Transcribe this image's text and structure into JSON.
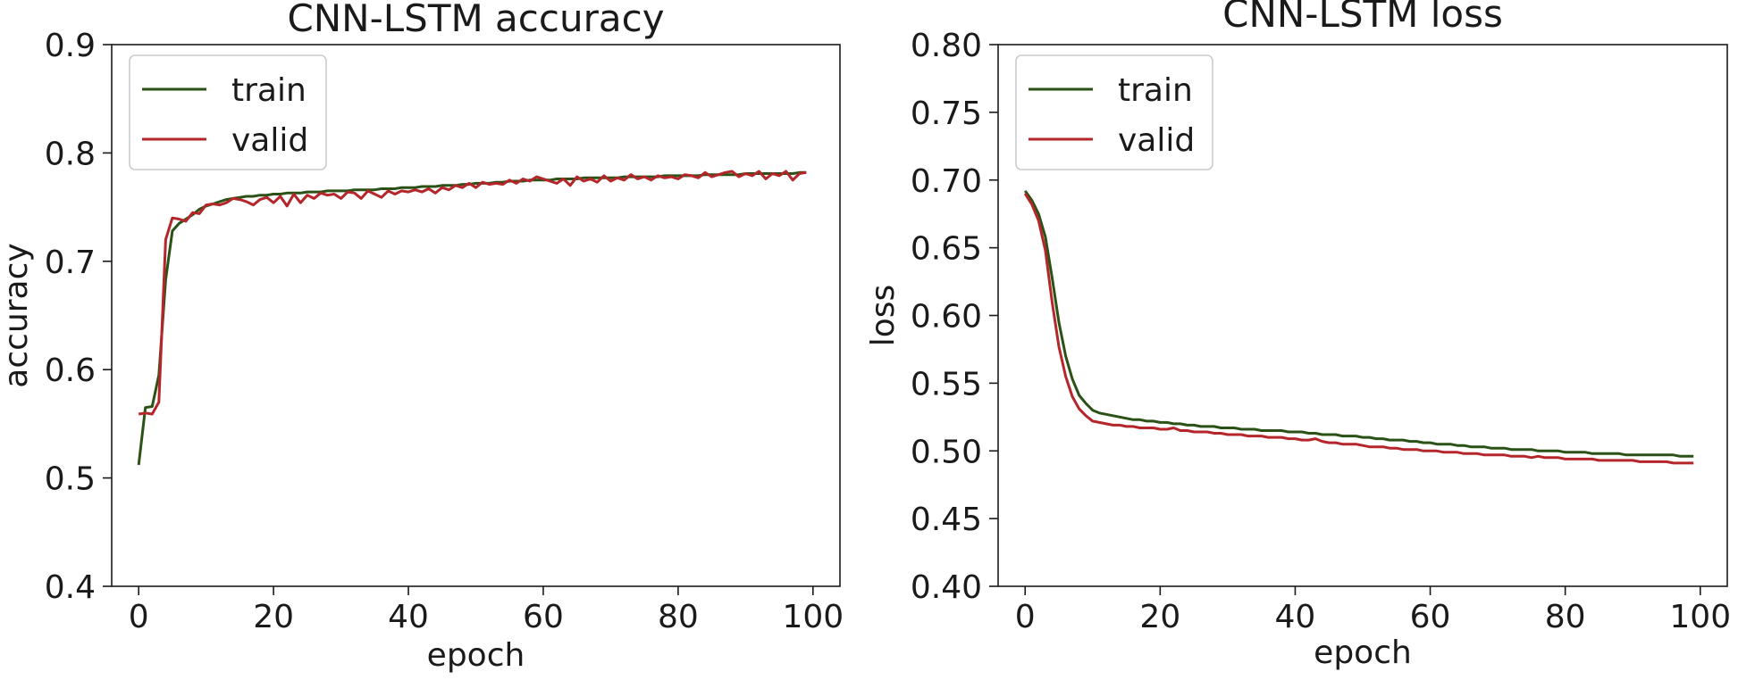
{
  "colors": {
    "train": "#2b5216",
    "valid": "#b5262b"
  },
  "chart_data": [
    {
      "type": "line",
      "title": "CNN-LSTM accuracy",
      "xlabel": "epoch",
      "ylabel": "accuracy",
      "xlim": [
        -4,
        104
      ],
      "ylim": [
        0.4,
        0.9
      ],
      "xticks": [
        "0",
        "20",
        "40",
        "60",
        "80",
        "100"
      ],
      "yticks": [
        "0.4",
        "0.5",
        "0.6",
        "0.7",
        "0.8",
        "0.9"
      ],
      "grid": false,
      "legend": "top-left",
      "x": [
        0,
        1,
        2,
        3,
        4,
        5,
        6,
        7,
        8,
        9,
        10,
        11,
        12,
        13,
        14,
        15,
        16,
        17,
        18,
        19,
        20,
        21,
        22,
        23,
        24,
        25,
        26,
        27,
        28,
        29,
        30,
        31,
        32,
        33,
        34,
        35,
        36,
        37,
        38,
        39,
        40,
        41,
        42,
        43,
        44,
        45,
        46,
        47,
        48,
        49,
        50,
        51,
        52,
        53,
        54,
        55,
        56,
        57,
        58,
        59,
        60,
        61,
        62,
        63,
        64,
        65,
        66,
        67,
        68,
        69,
        70,
        71,
        72,
        73,
        74,
        75,
        76,
        77,
        78,
        79,
        80,
        81,
        82,
        83,
        84,
        85,
        86,
        87,
        88,
        89,
        90,
        91,
        92,
        93,
        94,
        95,
        96,
        97,
        98,
        99
      ],
      "series": [
        {
          "name": "train",
          "color": "#2b5216",
          "values": [
            0.512,
            0.565,
            0.566,
            0.595,
            0.683,
            0.728,
            0.735,
            0.739,
            0.743,
            0.748,
            0.751,
            0.753,
            0.755,
            0.757,
            0.758,
            0.759,
            0.76,
            0.76,
            0.761,
            0.761,
            0.762,
            0.762,
            0.763,
            0.763,
            0.763,
            0.764,
            0.764,
            0.764,
            0.765,
            0.765,
            0.765,
            0.765,
            0.766,
            0.766,
            0.766,
            0.766,
            0.767,
            0.767,
            0.767,
            0.768,
            0.768,
            0.768,
            0.769,
            0.769,
            0.769,
            0.77,
            0.77,
            0.77,
            0.771,
            0.771,
            0.772,
            0.772,
            0.772,
            0.773,
            0.773,
            0.774,
            0.774,
            0.774,
            0.775,
            0.775,
            0.775,
            0.775,
            0.776,
            0.776,
            0.776,
            0.776,
            0.777,
            0.777,
            0.777,
            0.777,
            0.777,
            0.777,
            0.778,
            0.778,
            0.778,
            0.778,
            0.778,
            0.778,
            0.779,
            0.779,
            0.779,
            0.779,
            0.779,
            0.779,
            0.78,
            0.78,
            0.78,
            0.78,
            0.78,
            0.78,
            0.781,
            0.781,
            0.781,
            0.781,
            0.781,
            0.781,
            0.781,
            0.781,
            0.782,
            0.782
          ]
        },
        {
          "name": "valid",
          "color": "#b5262b",
          "values": [
            0.559,
            0.56,
            0.559,
            0.57,
            0.72,
            0.74,
            0.739,
            0.737,
            0.745,
            0.744,
            0.752,
            0.753,
            0.752,
            0.754,
            0.758,
            0.757,
            0.755,
            0.752,
            0.757,
            0.759,
            0.754,
            0.76,
            0.751,
            0.762,
            0.754,
            0.761,
            0.758,
            0.763,
            0.761,
            0.762,
            0.758,
            0.764,
            0.763,
            0.758,
            0.765,
            0.762,
            0.759,
            0.765,
            0.762,
            0.765,
            0.764,
            0.766,
            0.764,
            0.767,
            0.763,
            0.768,
            0.766,
            0.77,
            0.768,
            0.772,
            0.768,
            0.773,
            0.771,
            0.772,
            0.771,
            0.775,
            0.772,
            0.776,
            0.774,
            0.778,
            0.776,
            0.774,
            0.772,
            0.776,
            0.77,
            0.778,
            0.774,
            0.776,
            0.773,
            0.779,
            0.774,
            0.777,
            0.775,
            0.78,
            0.776,
            0.778,
            0.775,
            0.779,
            0.777,
            0.778,
            0.776,
            0.78,
            0.779,
            0.777,
            0.782,
            0.778,
            0.78,
            0.782,
            0.783,
            0.778,
            0.781,
            0.779,
            0.783,
            0.776,
            0.781,
            0.779,
            0.783,
            0.775,
            0.781,
            0.782
          ]
        }
      ]
    },
    {
      "type": "line",
      "title": "CNN-LSTM loss",
      "xlabel": "epoch",
      "ylabel": "loss",
      "xlim": [
        -4,
        104
      ],
      "ylim": [
        0.4,
        0.8
      ],
      "xticks": [
        "0",
        "20",
        "40",
        "60",
        "80",
        "100"
      ],
      "yticks": [
        "0.40",
        "0.45",
        "0.50",
        "0.55",
        "0.60",
        "0.65",
        "0.70",
        "0.75",
        "0.80"
      ],
      "grid": false,
      "legend": "top-left",
      "x": [
        0,
        1,
        2,
        3,
        4,
        5,
        6,
        7,
        8,
        9,
        10,
        11,
        12,
        13,
        14,
        15,
        16,
        17,
        18,
        19,
        20,
        21,
        22,
        23,
        24,
        25,
        26,
        27,
        28,
        29,
        30,
        31,
        32,
        33,
        34,
        35,
        36,
        37,
        38,
        39,
        40,
        41,
        42,
        43,
        44,
        45,
        46,
        47,
        48,
        49,
        50,
        51,
        52,
        53,
        54,
        55,
        56,
        57,
        58,
        59,
        60,
        61,
        62,
        63,
        64,
        65,
        66,
        67,
        68,
        69,
        70,
        71,
        72,
        73,
        74,
        75,
        76,
        77,
        78,
        79,
        80,
        81,
        82,
        83,
        84,
        85,
        86,
        87,
        88,
        89,
        90,
        91,
        92,
        93,
        94,
        95,
        96,
        97,
        98,
        99
      ],
      "series": [
        {
          "name": "train",
          "color": "#2b5216",
          "values": [
            0.692,
            0.685,
            0.675,
            0.658,
            0.628,
            0.595,
            0.57,
            0.553,
            0.541,
            0.535,
            0.53,
            0.528,
            0.527,
            0.526,
            0.525,
            0.524,
            0.523,
            0.523,
            0.522,
            0.522,
            0.521,
            0.521,
            0.52,
            0.52,
            0.519,
            0.519,
            0.518,
            0.518,
            0.518,
            0.517,
            0.517,
            0.517,
            0.516,
            0.516,
            0.516,
            0.515,
            0.515,
            0.515,
            0.515,
            0.514,
            0.514,
            0.514,
            0.513,
            0.513,
            0.512,
            0.512,
            0.512,
            0.511,
            0.511,
            0.511,
            0.51,
            0.51,
            0.509,
            0.509,
            0.508,
            0.508,
            0.508,
            0.507,
            0.507,
            0.506,
            0.506,
            0.505,
            0.505,
            0.505,
            0.504,
            0.504,
            0.503,
            0.503,
            0.503,
            0.502,
            0.502,
            0.502,
            0.501,
            0.501,
            0.501,
            0.501,
            0.5,
            0.5,
            0.5,
            0.5,
            0.499,
            0.499,
            0.499,
            0.499,
            0.498,
            0.498,
            0.498,
            0.498,
            0.498,
            0.497,
            0.497,
            0.497,
            0.497,
            0.497,
            0.497,
            0.497,
            0.497,
            0.496,
            0.496,
            0.496
          ]
        },
        {
          "name": "valid",
          "color": "#b5262b",
          "values": [
            0.69,
            0.682,
            0.67,
            0.648,
            0.61,
            0.577,
            0.555,
            0.54,
            0.531,
            0.526,
            0.522,
            0.521,
            0.52,
            0.519,
            0.519,
            0.518,
            0.518,
            0.517,
            0.517,
            0.517,
            0.516,
            0.516,
            0.517,
            0.515,
            0.515,
            0.514,
            0.514,
            0.514,
            0.513,
            0.513,
            0.512,
            0.512,
            0.512,
            0.511,
            0.511,
            0.511,
            0.51,
            0.51,
            0.51,
            0.509,
            0.509,
            0.508,
            0.508,
            0.509,
            0.507,
            0.506,
            0.506,
            0.505,
            0.505,
            0.505,
            0.504,
            0.503,
            0.503,
            0.503,
            0.502,
            0.502,
            0.501,
            0.501,
            0.501,
            0.5,
            0.5,
            0.5,
            0.499,
            0.499,
            0.499,
            0.498,
            0.498,
            0.498,
            0.497,
            0.497,
            0.497,
            0.497,
            0.496,
            0.496,
            0.496,
            0.495,
            0.496,
            0.495,
            0.495,
            0.495,
            0.494,
            0.494,
            0.494,
            0.494,
            0.494,
            0.493,
            0.493,
            0.493,
            0.493,
            0.493,
            0.493,
            0.492,
            0.492,
            0.492,
            0.492,
            0.492,
            0.491,
            0.491,
            0.491,
            0.491
          ]
        }
      ]
    }
  ]
}
